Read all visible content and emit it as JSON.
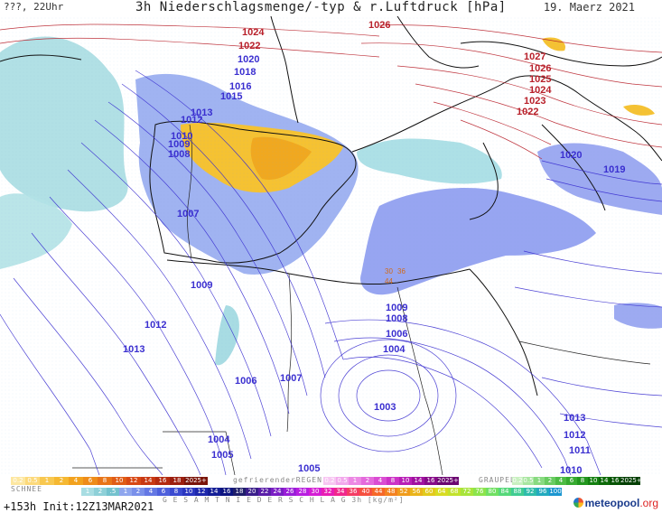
{
  "header": {
    "left": "???, 22Uhr",
    "title": "3h Niederschlagsmenge/-typ & r.Luftdruck [hPa]",
    "date": "19. Maerz 2021"
  },
  "isobar_labels_red": [
    "1026",
    "1024",
    "1022",
    "1027",
    "1026",
    "1025",
    "1024",
    "1023",
    "1022"
  ],
  "isobar_labels_blue": [
    "1020",
    "1018",
    "1016",
    "1015",
    "1013",
    "1012",
    "1010",
    "1009",
    "1008",
    "1007",
    "1009",
    "1012",
    "1013",
    "1009",
    "1008",
    "1006",
    "1004",
    "1006",
    "1007",
    "1003",
    "1004",
    "1005",
    "1005",
    "1020",
    "1019",
    "1013",
    "1012",
    "1011",
    "1010"
  ],
  "precip_labels": [
    "30",
    "36",
    "44"
  ],
  "legend": {
    "schnee_label": "SCHNEE",
    "schnee_values": [
      "0.2",
      "0.5",
      "1",
      "2",
      "4",
      "6",
      "8",
      "10",
      "12",
      "14",
      "16",
      "18",
      "2025+"
    ],
    "regen_label": "gefrierenderREGEN",
    "regen_values": [
      "0.2",
      "0.5",
      "1",
      "2",
      "4",
      "8",
      "10",
      "14",
      "16",
      "2025+"
    ],
    "graupel_label": "GRAUPEL",
    "graupel_values": [
      "0.2",
      "0.5",
      "1",
      "2",
      "4",
      "6",
      "8",
      "10",
      "14",
      "16",
      "2025+"
    ],
    "total_label": "G E S A M T N I E D E R S C H L A G   3h   [kg/m²]",
    "total_values": [
      "1",
      "2",
      ".5",
      "1",
      "2",
      "4",
      "6",
      "8",
      "10",
      "12",
      "14",
      "16",
      "18",
      "20",
      "22",
      "24",
      "26",
      "28",
      "30",
      "32",
      "34",
      "36",
      "40",
      "44",
      "48",
      "52",
      "56",
      "60",
      "64",
      "68",
      "72",
      "76",
      "80",
      "84",
      "88",
      "92",
      "96",
      "100"
    ]
  },
  "init": "+153h  Init:12Z13MAR2021",
  "logo": {
    "main": "meteopool",
    "tld": ".org"
  },
  "colors": {
    "sea": "#ffffff",
    "isobar_blue": "#3a2fd0",
    "isobar_red": "#b8202a",
    "precip_light": "#9fd8e0",
    "precip_blue": "#8a9cf0",
    "snow": "#f5c232"
  }
}
